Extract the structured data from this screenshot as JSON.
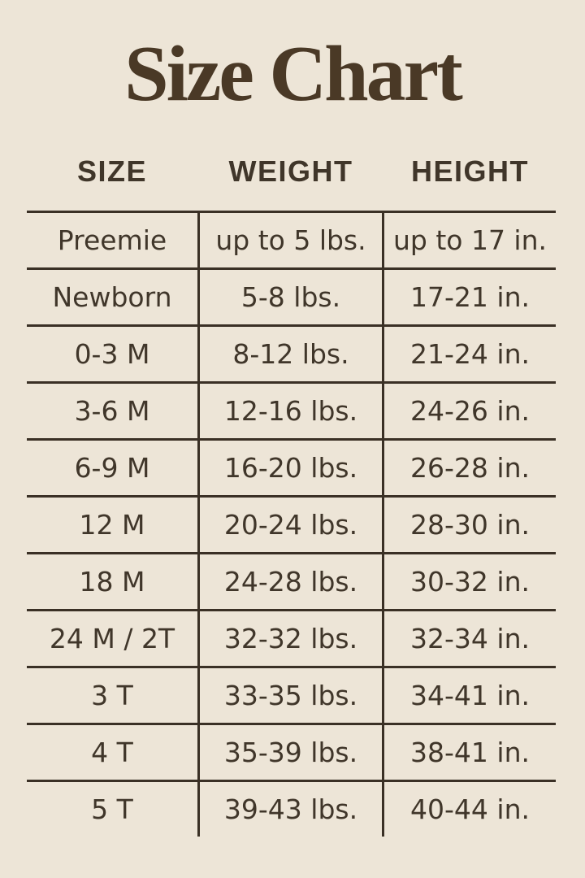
{
  "page": {
    "background_color": "#EDE5D7",
    "text_color": "#40362A",
    "line_color": "#3A3025",
    "title_color": "#4A3926"
  },
  "title": "Size Chart",
  "table": {
    "headers": [
      {
        "key": "size",
        "label": "SIZE"
      },
      {
        "key": "weight",
        "label": "WEIGHT"
      },
      {
        "key": "height",
        "label": "HEIGHT"
      }
    ],
    "rows": [
      {
        "size": "Preemie",
        "weight": "up to 5 lbs.",
        "height": "up to 17 in."
      },
      {
        "size": "Newborn",
        "weight": "5-8 lbs.",
        "height": "17-21 in."
      },
      {
        "size": "0-3 M",
        "weight": "8-12 lbs.",
        "height": "21-24 in."
      },
      {
        "size": "3-6 M",
        "weight": "12-16 lbs.",
        "height": "24-26 in."
      },
      {
        "size": "6-9 M",
        "weight": "16-20 lbs.",
        "height": "26-28 in."
      },
      {
        "size": "12 M",
        "weight": "20-24 lbs.",
        "height": "28-30 in."
      },
      {
        "size": "18 M",
        "weight": "24-28 lbs.",
        "height": "30-32 in."
      },
      {
        "size": "24 M / 2T",
        "weight": "32-32 lbs.",
        "height": "32-34 in."
      },
      {
        "size": "3 T",
        "weight": "33-35 lbs.",
        "height": "34-41 in."
      },
      {
        "size": "4 T",
        "weight": "35-39 lbs.",
        "height": "38-41 in."
      },
      {
        "size": "5 T",
        "weight": "39-43 lbs.",
        "height": "40-44 in."
      }
    ]
  },
  "chart_data": {
    "type": "table",
    "title": "Size Chart",
    "columns": [
      "SIZE",
      "WEIGHT",
      "HEIGHT"
    ],
    "rows": [
      [
        "Preemie",
        "up to 5 lbs.",
        "up to 17 in."
      ],
      [
        "Newborn",
        "5-8 lbs.",
        "17-21 in."
      ],
      [
        "0-3 M",
        "8-12 lbs.",
        "21-24 in."
      ],
      [
        "3-6 M",
        "12-16 lbs.",
        "24-26 in."
      ],
      [
        "6-9 M",
        "16-20 lbs.",
        "26-28 in."
      ],
      [
        "12 M",
        "20-24 lbs.",
        "28-30 in."
      ],
      [
        "18 M",
        "24-28 lbs.",
        "30-32 in."
      ],
      [
        "24 M / 2T",
        "32-32 lbs.",
        "32-34 in."
      ],
      [
        "3 T",
        "33-35 lbs.",
        "34-41 in."
      ],
      [
        "4 T",
        "35-39 lbs.",
        "38-41 in."
      ],
      [
        "5 T",
        "39-43 lbs.",
        "40-44 in."
      ]
    ]
  }
}
